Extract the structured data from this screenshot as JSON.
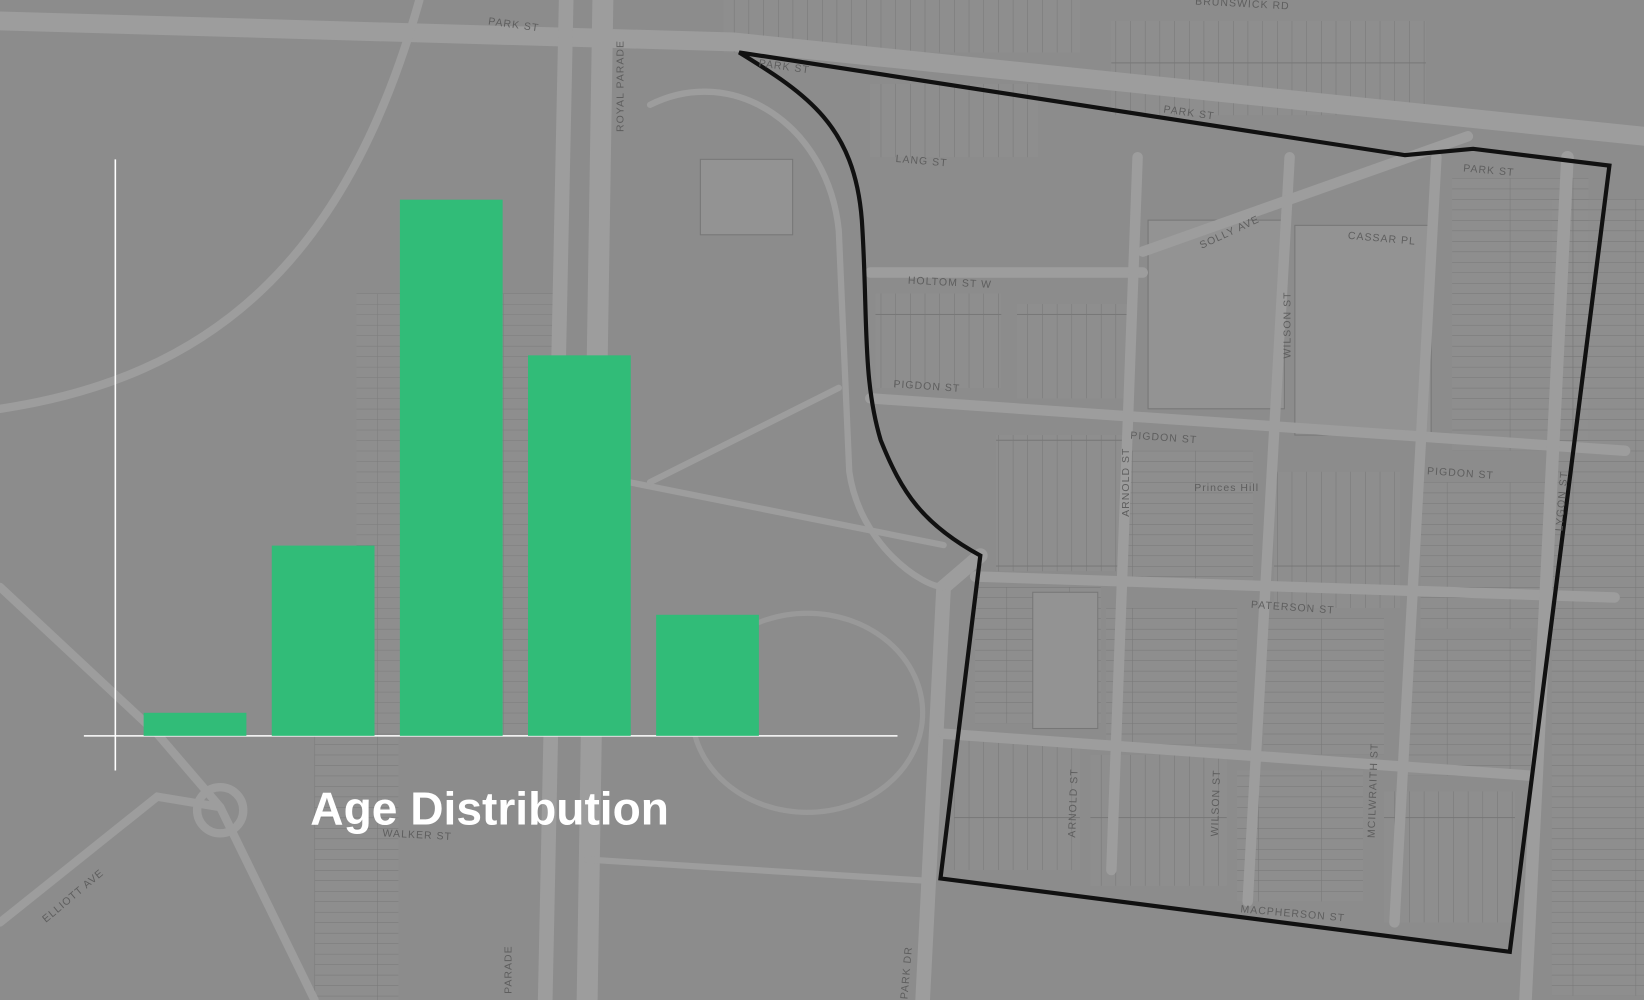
{
  "chart_data": {
    "type": "bar",
    "title": "Age Distribution",
    "categories": [
      null,
      null,
      null,
      null,
      null
    ],
    "values": [
      4,
      33,
      93,
      66,
      21
    ],
    "color": "#31bc78",
    "ylim": [
      0,
      100
    ]
  },
  "map": {
    "labels": [
      "PARK ST",
      "ROYAL PARADE",
      "PARK ST",
      "PARK ST",
      "LANG ST",
      "PARK ST",
      "SOLLY AVE",
      "CASSAR PL",
      "HOLTOM ST W",
      "WILSON ST",
      "PIGDON ST",
      "PIGDON ST",
      "PIGDON ST",
      "ARNOLD ST",
      "Princes Hill",
      "LYGON ST",
      "PATERSON ST",
      "ARNOLD ST",
      "WILSON ST",
      "MCILWRAITH ST",
      "MACPHERSON ST",
      "WALKER ST",
      "ELLIOTT AVE",
      "PARK DR",
      "PARADE",
      "BRUNSWICK RD"
    ]
  }
}
